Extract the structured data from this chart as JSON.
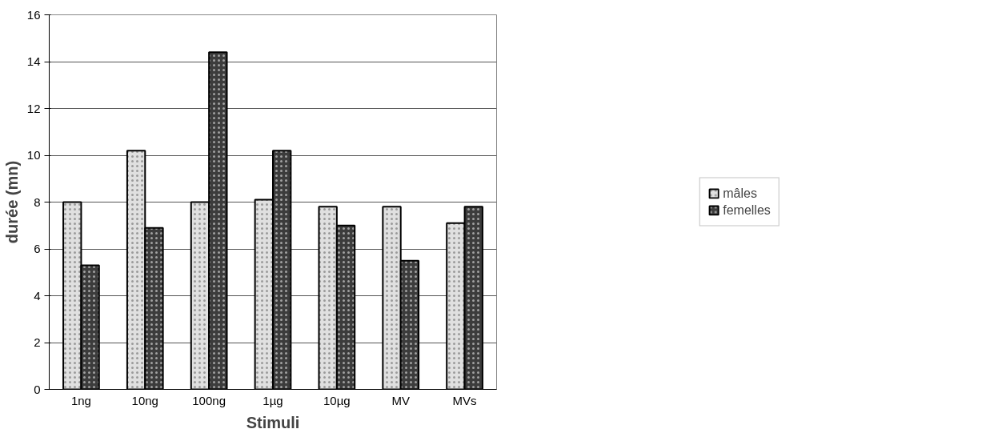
{
  "chart_data": {
    "type": "bar",
    "xlabel": "Stimuli",
    "ylabel": "durée (mn)",
    "categories": [
      "1ng",
      "10ng",
      "100ng",
      "1µg",
      "10µg",
      "MV",
      "MVs"
    ],
    "series": [
      {
        "name": "mâles",
        "color": "#e0e0e0",
        "values": [
          8.0,
          10.2,
          8.0,
          8.1,
          7.8,
          7.8,
          7.1
        ]
      },
      {
        "name": "femelles",
        "color": "#3c3c3c",
        "values": [
          5.3,
          6.9,
          14.4,
          10.2,
          7.0,
          5.5,
          7.8
        ]
      }
    ],
    "ylim": [
      0,
      16
    ],
    "yticks": [
      0,
      2,
      4,
      6,
      8,
      10,
      12,
      14,
      16
    ],
    "grid": "y",
    "legend": "right"
  }
}
